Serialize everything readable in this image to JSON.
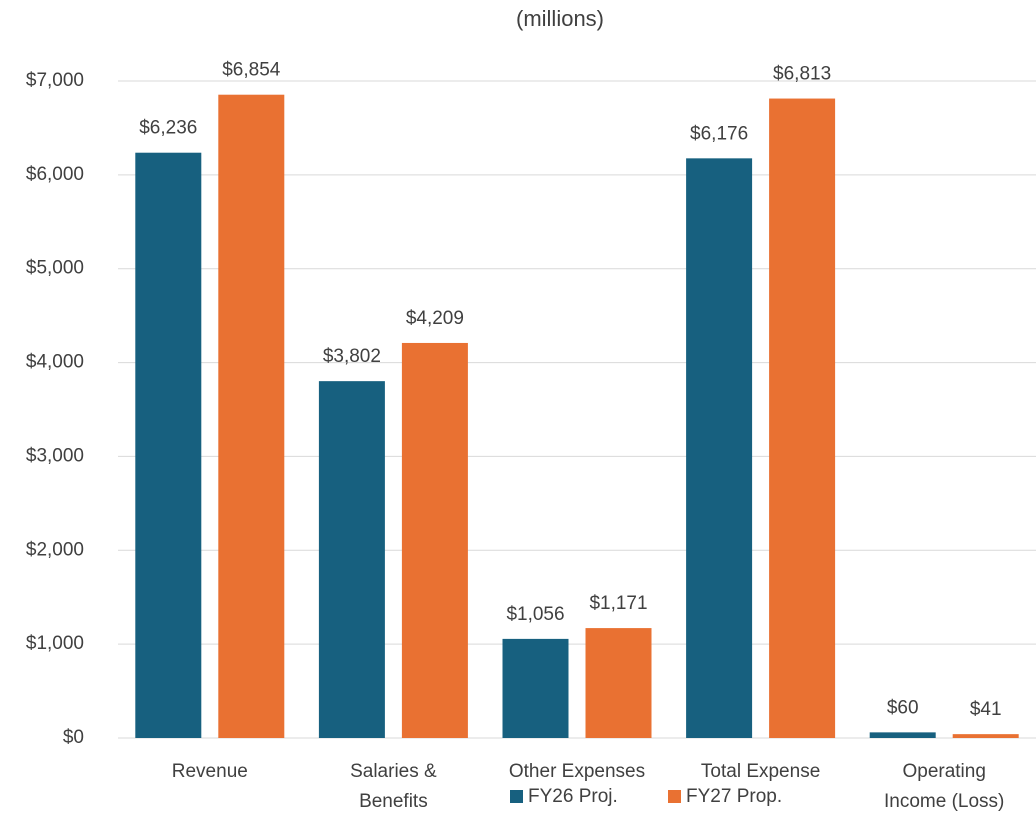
{
  "chart_data": {
    "type": "bar",
    "title": "(millions)",
    "categories": [
      "Revenue",
      "Salaries &\nBenefits",
      "Other Expenses",
      "Total Expense",
      "Operating\nIncome (Loss)"
    ],
    "series": [
      {
        "name": "FY26 Proj.",
        "color": "#17607f",
        "values": [
          6236,
          3802,
          1056,
          6176,
          60
        ],
        "value_labels": [
          "$6,236",
          "$3,802",
          "$1,056",
          "$6,176",
          "$60"
        ]
      },
      {
        "name": "FY27 Prop.",
        "color": "#e97132",
        "values": [
          6854,
          4209,
          1171,
          6813,
          41
        ],
        "value_labels": [
          "$6,854",
          "$4,209",
          "$1,171",
          "$6,813",
          "$41"
        ]
      }
    ],
    "ylim": [
      0,
      7000
    ],
    "yticks": [
      {
        "value": 0,
        "label": "$0"
      },
      {
        "value": 1000,
        "label": "$1,000"
      },
      {
        "value": 2000,
        "label": "$2,000"
      },
      {
        "value": 3000,
        "label": "$3,000"
      },
      {
        "value": 4000,
        "label": "$4,000"
      },
      {
        "value": 5000,
        "label": "$5,000"
      },
      {
        "value": 6000,
        "label": "$6,000"
      },
      {
        "value": 7000,
        "label": "$7,000"
      }
    ],
    "grid": true,
    "legend": "bottom"
  }
}
